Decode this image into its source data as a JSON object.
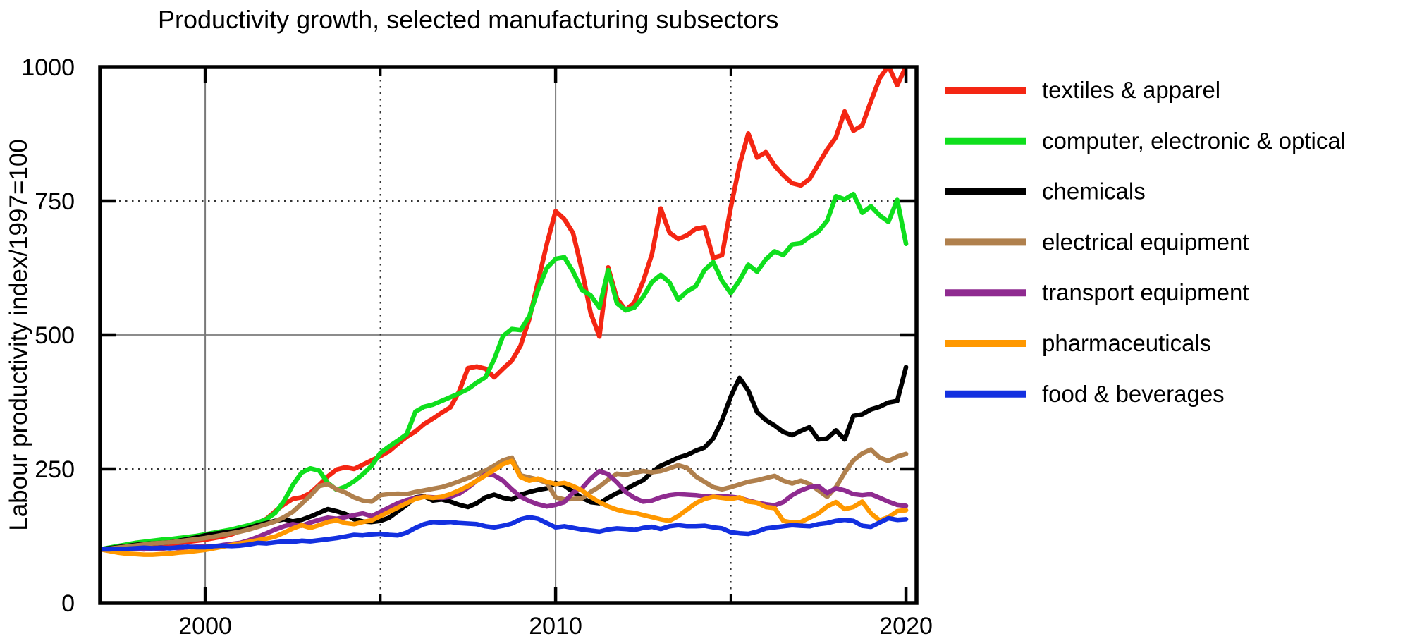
{
  "title": "Productivity growth, selected manufacturing subsectors",
  "chart_data": {
    "type": "line",
    "title": "Productivity growth, selected manufacturing subsectors",
    "xlabel": "",
    "ylabel": "Labour productivity index/1997=100",
    "xlim": [
      1997,
      2020.3
    ],
    "ylim": [
      0,
      1000
    ],
    "x_ticks": [
      2000,
      2010,
      2020
    ],
    "x_tick_labels": [
      "2000",
      "2010",
      "2020"
    ],
    "x_minor_ticks": [
      2005,
      2015
    ],
    "y_ticks": [
      0,
      250,
      500,
      750,
      1000
    ],
    "y_tick_labels": [
      "0",
      "250",
      "500",
      "750",
      "1000"
    ],
    "grid": {
      "x_solid": [
        2000,
        2010
      ],
      "x_dotted": [
        2005,
        2015
      ],
      "y_solid": [
        500
      ],
      "y_dotted": [
        250,
        750
      ]
    },
    "legend_position": "right",
    "x_start": 1997,
    "x_step": 0.25,
    "x_unit": "year (quarterly)",
    "series": [
      {
        "name": "textiles & apparel",
        "color": "#f42613",
        "values": [
          100,
          101,
          102,
          103,
          104,
          105,
          107,
          108,
          110,
          112,
          114,
          116,
          118,
          121,
          124,
          128,
          134,
          141,
          149,
          157,
          171,
          184,
          194,
          197,
          205,
          220,
          236,
          249,
          253,
          250,
          258,
          266,
          274,
          283,
          297,
          310,
          320,
          334,
          344,
          355,
          365,
          395,
          438,
          441,
          437,
          421,
          437,
          452,
          480,
          530,
          600,
          670,
          731,
          716,
          690,
          621,
          541,
          497,
          626,
          568,
          546,
          561,
          600,
          651,
          736,
          691,
          679,
          686,
          698,
          701,
          644,
          649,
          738,
          817,
          876,
          831,
          841,
          816,
          798,
          783,
          779,
          791,
          819,
          846,
          869,
          917,
          881,
          891,
          936,
          979,
          1002,
          966,
          1001
        ]
      },
      {
        "name": "computer, electronic & optical",
        "color": "#0fdf1d",
        "values": [
          100,
          103,
          106,
          109,
          112,
          114,
          116,
          118,
          119,
          121,
          123,
          125,
          128,
          131,
          134,
          137,
          141,
          145,
          150,
          156,
          168,
          190,
          220,
          243,
          251,
          247,
          224,
          211,
          217,
          227,
          240,
          256,
          280,
          292,
          303,
          315,
          357,
          366,
          370,
          377,
          384,
          391,
          399,
          411,
          421,
          455,
          498,
          511,
          509,
          535,
          585,
          625,
          642,
          645,
          618,
          584,
          574,
          551,
          621,
          559,
          546,
          551,
          571,
          599,
          612,
          598,
          566,
          581,
          591,
          621,
          636,
          601,
          578,
          602,
          631,
          618,
          641,
          656,
          649,
          669,
          671,
          683,
          693,
          713,
          759,
          753,
          763,
          728,
          740,
          723,
          711,
          752,
          670
        ]
      },
      {
        "name": "chemicals",
        "color": "#000000",
        "values": [
          100,
          102,
          104,
          106,
          108,
          110,
          111,
          112,
          113,
          116,
          119,
          122,
          126,
          129,
          131,
          133,
          136,
          140,
          145,
          149,
          153,
          156,
          152,
          155,
          161,
          168,
          175,
          171,
          166,
          156,
          152,
          151,
          153,
          159,
          171,
          183,
          197,
          199,
          191,
          193,
          189,
          183,
          179,
          186,
          197,
          202,
          196,
          193,
          202,
          207,
          211,
          214,
          224,
          219,
          207,
          196,
          188,
          186,
          196,
          205,
          212,
          221,
          229,
          244,
          256,
          263,
          271,
          276,
          284,
          290,
          307,
          341,
          385,
          420,
          396,
          356,
          341,
          331,
          319,
          313,
          321,
          328,
          305,
          307,
          322,
          305,
          349,
          352,
          361,
          366,
          374,
          377,
          440
        ]
      },
      {
        "name": "electrical equipment",
        "color": "#b0804d",
        "values": [
          100,
          101,
          103,
          105,
          107,
          109,
          111,
          112,
          113,
          115,
          117,
          119,
          121,
          124,
          127,
          130,
          133,
          137,
          142,
          147,
          152,
          160,
          170,
          185,
          200,
          218,
          222,
          212,
          206,
          197,
          191,
          189,
          201,
          203,
          204,
          203,
          207,
          210,
          213,
          216,
          221,
          227,
          233,
          240,
          247,
          256,
          266,
          271,
          238,
          234,
          230,
          224,
          197,
          193,
          194,
          195,
          207,
          217,
          230,
          241,
          239,
          243,
          246,
          244,
          246,
          251,
          257,
          252,
          236,
          226,
          216,
          212,
          216,
          221,
          226,
          229,
          233,
          237,
          228,
          223,
          228,
          222,
          210,
          198,
          216,
          243,
          266,
          279,
          286,
          271,
          265,
          273,
          278
        ]
      },
      {
        "name": "transport equipment",
        "color": "#8f2b90",
        "values": [
          100,
          99,
          100,
          100,
          101,
          100,
          102,
          101,
          103,
          102,
          104,
          105,
          106,
          105,
          108,
          110,
          112,
          117,
          123,
          130,
          137,
          143,
          147,
          144,
          150,
          155,
          159,
          157,
          160,
          164,
          167,
          162,
          170,
          178,
          186,
          192,
          196,
          198,
          197,
          196,
          198,
          204,
          215,
          228,
          240,
          238,
          228,
          212,
          198,
          190,
          184,
          180,
          183,
          188,
          206,
          214,
          232,
          246,
          240,
          225,
          207,
          196,
          189,
          191,
          197,
          201,
          203,
          202,
          201,
          199,
          198,
          199,
          198,
          196,
          191,
          187,
          184,
          182,
          188,
          201,
          210,
          216,
          218,
          205,
          214,
          210,
          203,
          201,
          203,
          196,
          189,
          183,
          181
        ]
      },
      {
        "name": "pharmaceuticals",
        "color": "#ff9800",
        "values": [
          100,
          97,
          94,
          92,
          91,
          90,
          90,
          91,
          92,
          94,
          95,
          97,
          99,
          102,
          105,
          108,
          111,
          114,
          117,
          120,
          124,
          131,
          139,
          145,
          140,
          145,
          151,
          154,
          149,
          147,
          151,
          154,
          162,
          170,
          178,
          186,
          194,
          198,
          196,
          198,
          203,
          210,
          218,
          228,
          238,
          248,
          259,
          265,
          235,
          228,
          232,
          226,
          222,
          224,
          218,
          210,
          198,
          188,
          180,
          174,
          170,
          168,
          164,
          160,
          156,
          153,
          162,
          174,
          186,
          194,
          198,
          196,
          194,
          197,
          189,
          187,
          179,
          177,
          153,
          150,
          151,
          159,
          167,
          180,
          188,
          175,
          179,
          189,
          167,
          154,
          160,
          171,
          173
        ]
      },
      {
        "name": "food & beverages",
        "color": "#1330e0",
        "values": [
          100,
          100,
          101,
          101,
          102,
          103,
          102,
          103,
          102,
          104,
          105,
          104,
          104,
          106,
          107,
          106,
          107,
          109,
          112,
          111,
          113,
          115,
          114,
          116,
          115,
          117,
          119,
          121,
          124,
          127,
          126,
          128,
          129,
          127,
          126,
          131,
          140,
          147,
          151,
          150,
          151,
          149,
          148,
          147,
          143,
          141,
          144,
          148,
          156,
          160,
          157,
          149,
          141,
          143,
          140,
          137,
          135,
          133,
          137,
          139,
          138,
          136,
          140,
          142,
          138,
          143,
          145,
          143,
          143,
          144,
          141,
          139,
          132,
          130,
          129,
          133,
          139,
          141,
          143,
          145,
          144,
          143,
          147,
          149,
          153,
          155,
          153,
          144,
          142,
          150,
          158,
          155,
          156
        ]
      }
    ]
  }
}
